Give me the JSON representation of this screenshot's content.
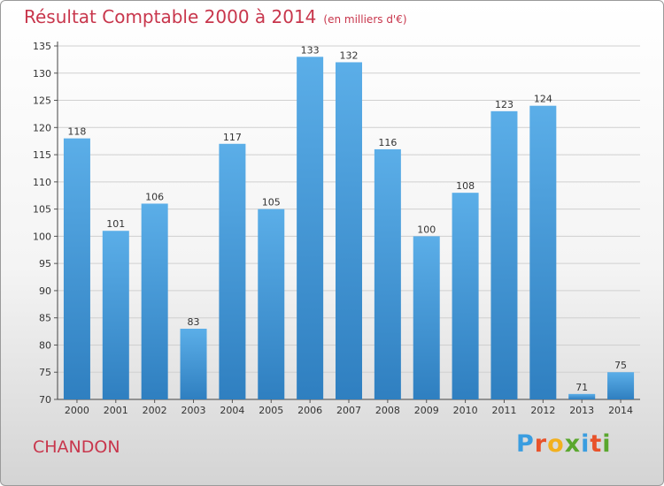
{
  "header": {
    "title": "Résultat Comptable 2000 à 2014",
    "subtitle": "(en milliers d'€)"
  },
  "footer": {
    "commune": "CHANDON",
    "brand_letters": [
      "P",
      "r",
      "o",
      "x",
      "i",
      "t",
      "i"
    ],
    "brand_colors": [
      "#3a9de0",
      "#e8522a",
      "#f2b01e",
      "#5aa72e",
      "#3a9de0",
      "#e8522a",
      "#5aa72e"
    ]
  },
  "colors": {
    "accent": "#c8364c",
    "bar_light": "#5baee8",
    "bar_dark": "#2f7fc0",
    "grid": "#d0d0d0"
  },
  "chart_data": {
    "type": "bar",
    "categories": [
      "2000",
      "2001",
      "2002",
      "2003",
      "2004",
      "2005",
      "2006",
      "2007",
      "2008",
      "2009",
      "2010",
      "2011",
      "2012",
      "2013",
      "2014"
    ],
    "values": [
      118,
      101,
      106,
      83,
      117,
      105,
      133,
      132,
      116,
      100,
      108,
      123,
      124,
      71,
      75
    ],
    "ylim": [
      70,
      135
    ],
    "yticks": [
      70,
      75,
      80,
      85,
      90,
      95,
      100,
      105,
      110,
      115,
      120,
      125,
      130,
      135
    ],
    "grid": true,
    "xlabel": "",
    "ylabel": ""
  }
}
